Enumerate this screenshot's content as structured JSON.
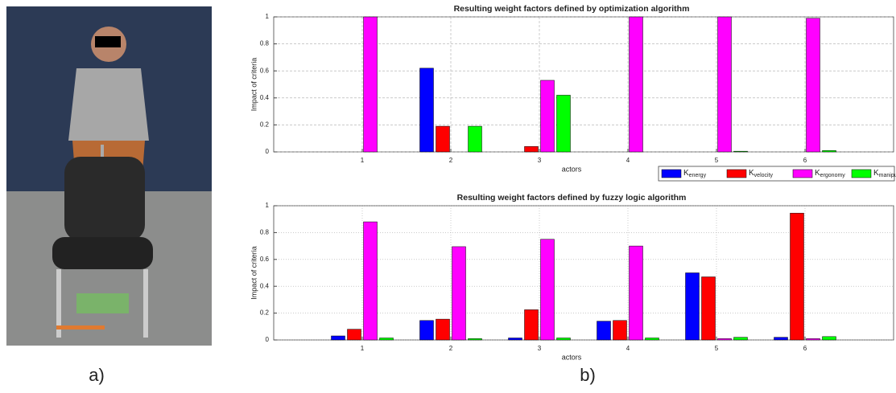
{
  "captions": [
    "a)",
    "b)"
  ],
  "chart_data": [
    {
      "type": "bar",
      "title": "Resulting weight factors defined by optimization algorithm",
      "y_label": "Impact of criteria",
      "x_label": "actors",
      "x": [
        1,
        2,
        3,
        4,
        5,
        6
      ],
      "xlim": [
        0,
        7
      ],
      "xticks": [
        1,
        2,
        3,
        4,
        5,
        6
      ],
      "ylim": [
        0,
        1
      ],
      "yticks": [
        0,
        0.2,
        0.4,
        0.6,
        0.8,
        1
      ],
      "grid": true,
      "grid_style": "dashed",
      "legend": "below-right",
      "series": [
        {
          "name": "K",
          "subscript": "energy",
          "color": "#0000ff",
          "values": [
            0,
            0.62,
            0,
            0,
            0,
            0
          ]
        },
        {
          "name": "K",
          "subscript": "velocity",
          "color": "#ff0000",
          "values": [
            0,
            0.19,
            0.04,
            0,
            0,
            0
          ]
        },
        {
          "name": "K",
          "subscript": "ergonomy",
          "color": "#ff00ff",
          "values": [
            1,
            0,
            0.53,
            1,
            1,
            0.99
          ]
        },
        {
          "name": "K",
          "subscript": "manipulability",
          "color": "#00ff00",
          "values": [
            0,
            0.19,
            0.42,
            0,
            0.005,
            0.01
          ]
        }
      ]
    },
    {
      "type": "bar",
      "title": "Resulting weight factors defined by fuzzy logic algorithm",
      "y_label": "Impact of criteria",
      "x_label": "actors",
      "x": [
        1,
        2,
        3,
        4,
        5,
        6
      ],
      "xlim": [
        0,
        7
      ],
      "xticks": [
        1,
        2,
        3,
        4,
        5,
        6
      ],
      "ylim": [
        0,
        1
      ],
      "yticks": [
        0,
        0.2,
        0.4,
        0.6,
        0.8,
        1
      ],
      "grid": true,
      "grid_style": "dotted",
      "series": [
        {
          "color": "#0000ff",
          "values": [
            0.03,
            0.145,
            0.015,
            0.14,
            0.5,
            0.02
          ]
        },
        {
          "color": "#ff0000",
          "values": [
            0.08,
            0.155,
            0.225,
            0.145,
            0.47,
            0.945
          ]
        },
        {
          "color": "#ff00ff",
          "values": [
            0.88,
            0.695,
            0.75,
            0.7,
            0.01,
            0.01
          ]
        },
        {
          "color": "#00ff00",
          "values": [
            0.015,
            0.01,
            0.015,
            0.015,
            0.02,
            0.025
          ]
        }
      ]
    }
  ]
}
